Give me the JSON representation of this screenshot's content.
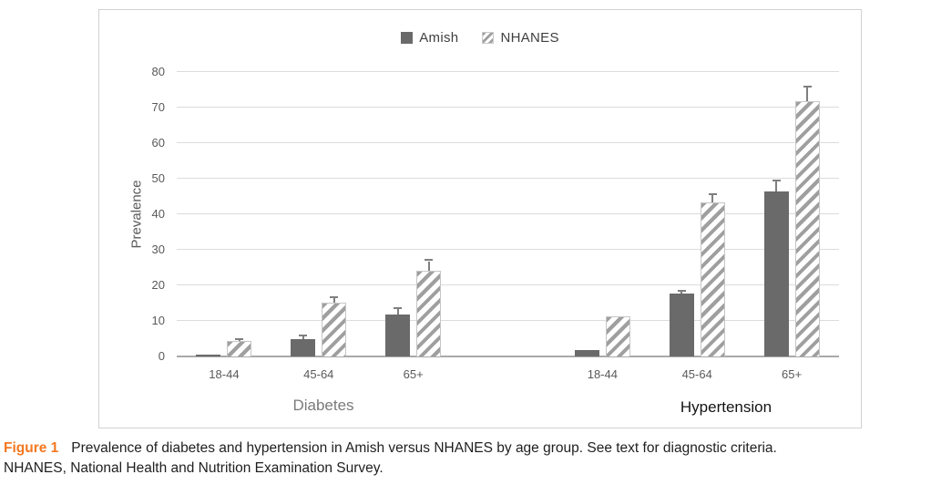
{
  "figure": {
    "caption_label": "Figure 1",
    "caption_line1": "Prevalence of diabetes and hypertension in Amish versus NHANES by age group. See text for diagnostic criteria.",
    "caption_line2": "NHANES, National Health and Nutrition Examination Survey."
  },
  "colors": {
    "amish_bar": "#6a6a6a",
    "nhanes_hatch_stripe": "#9f9f9f",
    "gridline": "#dcdcdc",
    "axis_line": "#a9a9a9",
    "tick_text": "#595959",
    "caption_accent": "#f4771f"
  },
  "chart_data": {
    "type": "bar",
    "title": "",
    "xlabel": "",
    "ylabel": "Prevalence",
    "ylim": [
      0,
      80
    ],
    "yticks": [
      0,
      10,
      20,
      30,
      40,
      50,
      60,
      70,
      80
    ],
    "grid": true,
    "legend": [
      "Amish",
      "NHANES"
    ],
    "legend_position": "top-center",
    "groups": [
      "Diabetes",
      "Hypertension"
    ],
    "categories": [
      "18-44",
      "45-64",
      "65+"
    ],
    "series": [
      {
        "name": "Amish",
        "group": "Diabetes",
        "values": [
          0.6,
          4.8,
          11.8
        ],
        "errors_plus": [
          0,
          0.8,
          1.6
        ]
      },
      {
        "name": "NHANES",
        "group": "Diabetes",
        "values": [
          4.3,
          15.2,
          24.1
        ],
        "errors_plus": [
          0.4,
          1.3,
          2.7
        ]
      },
      {
        "name": "Amish",
        "group": "Hypertension",
        "values": [
          1.8,
          17.7,
          46.4
        ],
        "errors_plus": [
          0,
          0.6,
          2.9
        ]
      },
      {
        "name": "NHANES",
        "group": "Hypertension",
        "values": [
          11.4,
          43.3,
          71.8
        ],
        "errors_plus": [
          0,
          2.2,
          3.9
        ]
      }
    ]
  }
}
